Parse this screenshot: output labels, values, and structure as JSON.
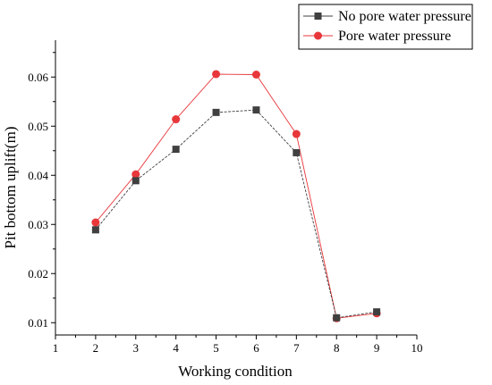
{
  "chart_data": {
    "type": "line",
    "title": "",
    "xlabel": "Working condition",
    "ylabel": "Pit bottom uplift(m)",
    "xlim": [
      1,
      10
    ],
    "ylim": [
      0.0075,
      0.0675
    ],
    "xticks": [
      "1",
      "2",
      "3",
      "4",
      "5",
      "6",
      "7",
      "8",
      "9",
      "10"
    ],
    "yticks": [
      "0.01",
      "0.02",
      "0.03",
      "0.04",
      "0.05",
      "0.06"
    ],
    "legend_position": "top-right",
    "grid": false,
    "series": [
      {
        "name": "No pore water pressure",
        "color": "#404040",
        "marker": "square",
        "x": [
          2,
          3,
          4,
          5,
          6,
          7,
          8,
          9
        ],
        "y": [
          0.0289,
          0.0389,
          0.0453,
          0.0528,
          0.0533,
          0.0446,
          0.011,
          0.0122
        ]
      },
      {
        "name": "Pore water pressure",
        "color": "#e8373b",
        "marker": "circle",
        "x": [
          2,
          3,
          4,
          5,
          6,
          7,
          8,
          9
        ],
        "y": [
          0.0304,
          0.0402,
          0.0514,
          0.0606,
          0.0605,
          0.0484,
          0.0109,
          0.0119
        ]
      }
    ]
  }
}
